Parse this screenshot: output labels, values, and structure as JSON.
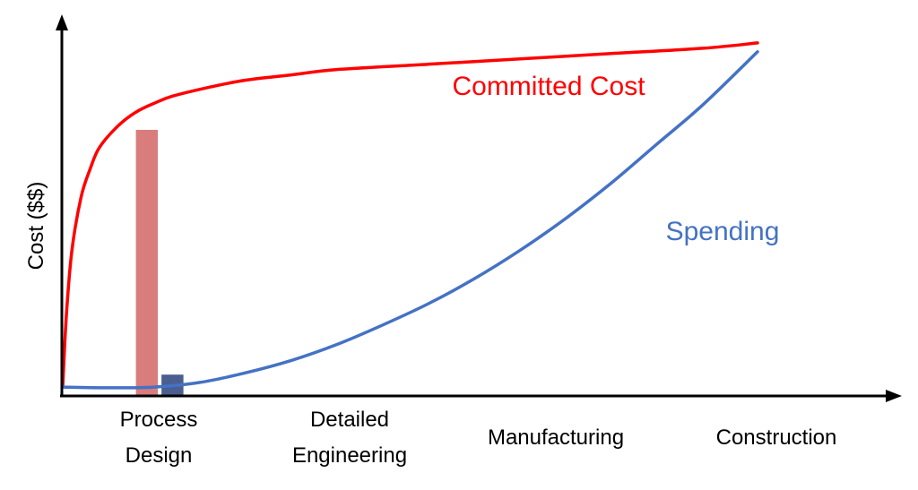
{
  "chart_data": {
    "type": "line",
    "title": "",
    "xlabel": "",
    "ylabel": "Cost ($$)",
    "x_range": [
      0,
      4.7
    ],
    "y_range": [
      0,
      100
    ],
    "grid": false,
    "categories": [
      {
        "lines": [
          "Process",
          "Design"
        ],
        "x": 0.5
      },
      {
        "lines": [
          "Detailed",
          "Engineering"
        ],
        "x": 1.5
      },
      {
        "lines": [
          "Manufacturing"
        ],
        "x": 2.5
      },
      {
        "lines": [
          "Construction"
        ],
        "x": 3.5
      }
    ],
    "series": [
      {
        "name": "Committed Cost",
        "color": "#ff0000",
        "x": [
          0,
          0.02,
          0.05,
          0.1,
          0.15,
          0.2,
          0.3,
          0.4,
          0.5,
          0.6,
          0.8,
          1.0,
          1.25,
          1.5,
          2.0,
          2.5,
          3.0,
          3.5,
          3.8
        ],
        "y": [
          2,
          22,
          40,
          55,
          63,
          69,
          75,
          79,
          81.5,
          83.5,
          86,
          88,
          89.5,
          91,
          92.5,
          94,
          95.5,
          97,
          98.5
        ]
      },
      {
        "name": "Spending",
        "color": "#4472c4",
        "x": [
          0,
          0.25,
          0.5,
          0.75,
          1.0,
          1.25,
          1.5,
          1.75,
          2.0,
          2.25,
          2.5,
          2.75,
          3.0,
          3.25,
          3.5,
          3.8
        ],
        "y": [
          1.5,
          1.3,
          1.5,
          2.8,
          5.5,
          9,
          13.5,
          19,
          25,
          32,
          40,
          49,
          59,
          70,
          81,
          96
        ]
      }
    ],
    "bars": [
      {
        "x0": 0.4,
        "x1": 0.52,
        "value": 74,
        "color": "#d97c7c"
      },
      {
        "x0": 0.54,
        "x1": 0.66,
        "value": 5,
        "color": "#4a5f8f"
      }
    ],
    "annotations": [
      {
        "text": "Committed Cost",
        "color": "#ff0000",
        "x": 2.45,
        "y": 87
      },
      {
        "text": "Spending",
        "color": "#4472c4",
        "x": 3.25,
        "y": 45
      }
    ]
  }
}
